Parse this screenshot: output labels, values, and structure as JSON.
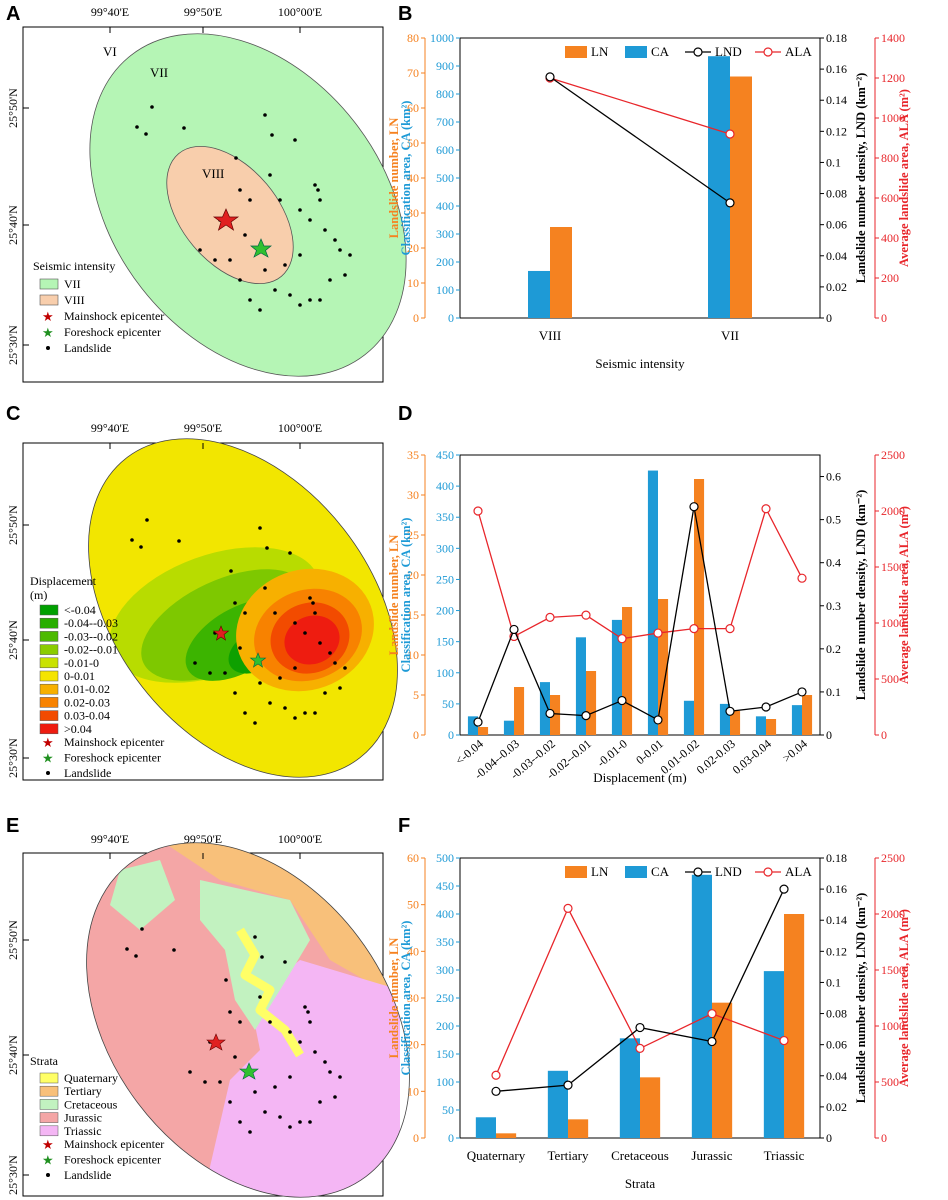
{
  "panels": {
    "A": {
      "letter": "A",
      "lon_ticks": [
        "99°40'E",
        "99°50'E",
        "100°00'E"
      ],
      "lat_ticks": [
        "25°50'N",
        "25°40'N",
        "25°30'N"
      ],
      "zone_labels": [
        "VI",
        "VII",
        "VIII"
      ],
      "legend_title": "Seismic intensity",
      "legend": [
        "VII",
        "VIII",
        "Mainshock epicenter",
        "Foreshock epicenter",
        "Landslide"
      ],
      "colors": {
        "VII": "#b5f5b5",
        "VIII": "#f8ceac"
      }
    },
    "C": {
      "letter": "C",
      "lon_ticks": [
        "99°40'E",
        "99°50'E",
        "100°00'E"
      ],
      "lat_ticks": [
        "25°50'N",
        "25°40'N",
        "25°30'N"
      ],
      "legend_title": "Displacement",
      "legend_unit": "(m)",
      "legend": [
        "<-0.04",
        "-0.04--0.03",
        "-0.03--0.02",
        "-0.02--0.01",
        "-0.01-0",
        "0-0.01",
        "0.01-0.02",
        "0.02-0.03",
        "0.03-0.04",
        ">0.04"
      ],
      "legend_colors": [
        "#00a000",
        "#29ae00",
        "#4dba00",
        "#8bcc00",
        "#c9e200",
        "#f5e400",
        "#f7b000",
        "#f88200",
        "#f24b00",
        "#ee1c10"
      ],
      "markers": [
        "Mainshock epicenter",
        "Foreshock epicenter",
        "Landslide"
      ]
    },
    "E": {
      "letter": "E",
      "lon_ticks": [
        "99°40'E",
        "99°50'E",
        "100°00'E"
      ],
      "lat_ticks": [
        "25°50'N",
        "25°40'N",
        "25°30'N"
      ],
      "legend_title": "Strata",
      "legend": [
        "Quaternary",
        "Tertiary",
        "Cretaceous",
        "Jurassic",
        "Triassic"
      ],
      "legend_colors": [
        "#ffff66",
        "#f8c07a",
        "#c2f2c0",
        "#f4a6a6",
        "#f4b6f4"
      ],
      "markers": [
        "Mainshock epicenter",
        "Foreshock epicenter",
        "Landslide"
      ]
    }
  },
  "chart_data": [
    {
      "panel": "B",
      "type": "bar",
      "xlabel": "Seismic intensity",
      "categories": [
        "VIII",
        "VII"
      ],
      "axes": {
        "LN": {
          "label": "Landslide number, LN",
          "ylim": [
            0,
            80
          ],
          "ticks": [
            0,
            10,
            20,
            30,
            40,
            50,
            60,
            70,
            80
          ],
          "color": "#f58220"
        },
        "CA": {
          "label": "Classification area, CA (km²)",
          "ylim": [
            0,
            1000
          ],
          "ticks": [
            0,
            100,
            200,
            300,
            400,
            500,
            600,
            700,
            800,
            900,
            1000
          ],
          "color": "#1e9ad6"
        },
        "LND": {
          "label": "Landslide number density, LND (km⁻²)",
          "ylim": [
            0,
            0.18
          ],
          "ticks": [
            "0",
            "0.02",
            "0.04",
            "0.06",
            "0.08",
            "0.1",
            "0.12",
            "0.14",
            "0.16",
            "0.18"
          ],
          "color": "#000000"
        },
        "ALA": {
          "label": "Average landslide area, ALA (m²)",
          "ylim": [
            0,
            1400
          ],
          "ticks": [
            0,
            200,
            400,
            600,
            800,
            1000,
            1200,
            1400
          ],
          "color": "#e8262b"
        }
      },
      "series": [
        {
          "name": "LN",
          "kind": "bar",
          "axis": "LN",
          "values": [
            26,
            69
          ]
        },
        {
          "name": "CA",
          "kind": "bar",
          "axis": "CA",
          "values": [
            168,
            935
          ]
        },
        {
          "name": "LND",
          "kind": "line",
          "axis": "LND",
          "values": [
            0.155,
            0.074
          ]
        },
        {
          "name": "ALA",
          "kind": "line",
          "axis": "ALA",
          "values": [
            1200,
            920
          ]
        }
      ],
      "legend": [
        "LN",
        "CA",
        "LND",
        "ALA"
      ]
    },
    {
      "panel": "D",
      "type": "bar",
      "xlabel": "Displacement (m)",
      "categories": [
        "<-0.04",
        "-0.04--0.03",
        "-0.03--0.02",
        "-0.02--0.01",
        "-0.01-0",
        "0-0.01",
        "0.01-0.02",
        "0.02-0.03",
        "0.03-0.04",
        ">0.04"
      ],
      "axes": {
        "LN": {
          "label": "Landslide number, LN",
          "ylim": [
            0,
            35
          ],
          "ticks": [
            0,
            5,
            10,
            15,
            20,
            25,
            30,
            35
          ],
          "color": "#f58220"
        },
        "CA": {
          "label": "Classification area, CA (km²)",
          "ylim": [
            0,
            450
          ],
          "ticks": [
            0,
            50,
            100,
            150,
            200,
            250,
            300,
            350,
            400,
            450
          ],
          "color": "#1e9ad6"
        },
        "LND": {
          "label": "Landslide number density, LND (km⁻²)",
          "ylim": [
            0,
            0.65
          ],
          "ticks": [
            "0",
            "0.1",
            "0.2",
            "0.3",
            "0.4",
            "0.5",
            "0.6"
          ],
          "color": "#000000"
        },
        "ALA": {
          "label": "Average landslide area, ALA (m²)",
          "ylim": [
            0,
            2500
          ],
          "ticks": [
            0,
            500,
            1000,
            1500,
            2000,
            2500
          ],
          "color": "#e8262b"
        }
      },
      "series": [
        {
          "name": "LN",
          "kind": "bar",
          "axis": "LN",
          "values": [
            1,
            6,
            5,
            8,
            16,
            17,
            32,
            3,
            2,
            5
          ]
        },
        {
          "name": "CA",
          "kind": "bar",
          "axis": "CA",
          "values": [
            30,
            23,
            85,
            157,
            185,
            425,
            55,
            50,
            30,
            48
          ]
        },
        {
          "name": "LND",
          "kind": "line",
          "axis": "LND",
          "values": [
            0.03,
            0.245,
            0.05,
            0.045,
            0.08,
            0.035,
            0.53,
            0.055,
            0.065,
            0.1
          ]
        },
        {
          "name": "ALA",
          "kind": "line",
          "axis": "ALA",
          "values": [
            2000,
            880,
            1050,
            1070,
            860,
            910,
            950,
            950,
            2020,
            1400
          ]
        }
      ],
      "legend": []
    },
    {
      "panel": "F",
      "type": "bar",
      "xlabel": "Strata",
      "categories": [
        "Quaternary",
        "Tertiary",
        "Cretaceous",
        "Jurassic",
        "Triassic"
      ],
      "axes": {
        "LN": {
          "label": "Landslide number, LN",
          "ylim": [
            0,
            60
          ],
          "ticks": [
            0,
            10,
            20,
            30,
            40,
            50,
            60
          ],
          "color": "#f58220"
        },
        "CA": {
          "label": "Classification area, CA (km²)",
          "ylim": [
            0,
            500
          ],
          "ticks": [
            0,
            50,
            100,
            150,
            200,
            250,
            300,
            350,
            400,
            450,
            500
          ],
          "color": "#1e9ad6"
        },
        "LND": {
          "label": "Landslide number density, LND (km⁻²)",
          "ylim": [
            0,
            0.18
          ],
          "ticks": [
            "0",
            "0.02",
            "0.04",
            "0.06",
            "0.08",
            "0.1",
            "0.12",
            "0.14",
            "0.16",
            "0.18"
          ],
          "color": "#000000"
        },
        "ALA": {
          "label": "Average landslide area, ALA (m²)",
          "ylim": [
            0,
            2500
          ],
          "ticks": [
            0,
            500,
            1000,
            1500,
            2000,
            2500
          ],
          "color": "#e8262b"
        }
      },
      "series": [
        {
          "name": "LN",
          "kind": "bar",
          "axis": "LN",
          "values": [
            1,
            4,
            13,
            29,
            48
          ]
        },
        {
          "name": "CA",
          "kind": "bar",
          "axis": "CA",
          "values": [
            37,
            120,
            178,
            470,
            298
          ]
        },
        {
          "name": "LND",
          "kind": "line",
          "axis": "LND",
          "values": [
            0.03,
            0.034,
            0.071,
            0.062,
            0.16
          ]
        },
        {
          "name": "ALA",
          "kind": "line",
          "axis": "ALA",
          "values": [
            560,
            2050,
            800,
            1110,
            870
          ]
        }
      ],
      "legend": [
        "LN",
        "CA",
        "LND",
        "ALA"
      ]
    }
  ]
}
